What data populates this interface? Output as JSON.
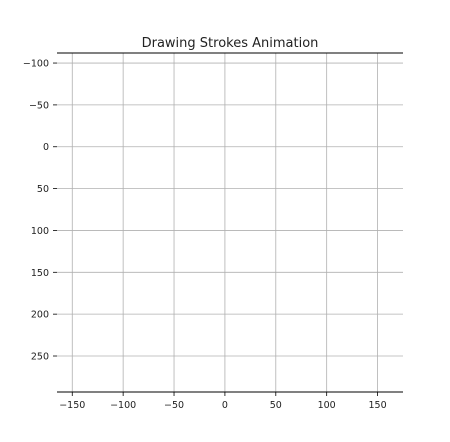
{
  "chart_data": {
    "type": "line",
    "title": "Drawing Strokes Animation",
    "xlabel": "",
    "ylabel": "",
    "xlim": [
      -165,
      175
    ],
    "ylim": [
      -112,
      293
    ],
    "y_inverted": true,
    "grid": true,
    "x_ticks": [
      -150,
      -100,
      -50,
      0,
      50,
      100,
      150
    ],
    "y_ticks": [
      -100,
      -50,
      0,
      50,
      100,
      150,
      200,
      250
    ],
    "series": []
  }
}
